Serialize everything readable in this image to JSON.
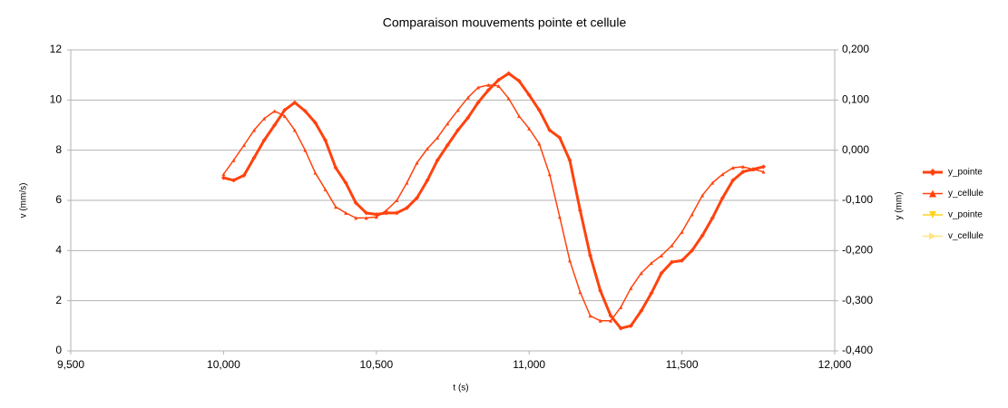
{
  "chart_data": {
    "type": "line",
    "title": "Comparaison mouvements pointe et cellule",
    "x_label": "t (s)",
    "y_label": "v (mm/s)",
    "y2_label": "y (mm)",
    "x": [
      10,
      10.033,
      10.067,
      10.1,
      10.133,
      10.167,
      10.2,
      10.233,
      10.267,
      10.3,
      10.333,
      10.367,
      10.4,
      10.433,
      10.467,
      10.5,
      10.533,
      10.567,
      10.6,
      10.633,
      10.667,
      10.7,
      10.733,
      10.767,
      10.8,
      10.833,
      10.867,
      10.9,
      10.933,
      10.967,
      11,
      11.033,
      11.067,
      11.1,
      11.133,
      11.167,
      11.2,
      11.233,
      11.267,
      11.3,
      11.333,
      11.367,
      11.4,
      11.433,
      11.467,
      11.5,
      11.533,
      11.567,
      11.6,
      11.633,
      11.667,
      11.7,
      11.733,
      11.767
    ],
    "series": [
      {
        "name": "y_pointe",
        "color": "#ff420e",
        "marker": "diamond",
        "width": 3,
        "axis": "y2",
        "values": [
          -0.055,
          -0.06,
          -0.05,
          -0.015,
          0.02,
          0.05,
          0.08,
          0.095,
          0.078,
          0.055,
          0.02,
          -0.035,
          -0.065,
          -0.105,
          -0.125,
          -0.128,
          -0.125,
          -0.125,
          -0.115,
          -0.095,
          -0.06,
          -0.02,
          0.01,
          0.04,
          0.065,
          0.095,
          0.12,
          0.14,
          0.153,
          0.138,
          0.11,
          0.08,
          0.04,
          0.025,
          -0.02,
          -0.12,
          -0.21,
          -0.28,
          -0.33,
          -0.355,
          -0.35,
          -0.32,
          -0.285,
          -0.245,
          -0.223,
          -0.22,
          -0.2,
          -0.17,
          -0.135,
          -0.095,
          -0.06,
          -0.043,
          -0.038,
          -0.033
        ]
      },
      {
        "name": "y_cellule",
        "color": "#ff420e",
        "marker": "triangle",
        "width": 1.5,
        "axis": "y2",
        "values": [
          -0.048,
          -0.02,
          0.01,
          0.04,
          0.063,
          0.078,
          0.068,
          0.04,
          0,
          -0.045,
          -0.078,
          -0.113,
          -0.125,
          -0.135,
          -0.135,
          -0.133,
          -0.12,
          -0.1,
          -0.065,
          -0.025,
          0.003,
          0.025,
          0.053,
          0.08,
          0.105,
          0.125,
          0.13,
          0.128,
          0.103,
          0.068,
          0.043,
          0.013,
          -0.048,
          -0.133,
          -0.22,
          -0.283,
          -0.33,
          -0.34,
          -0.34,
          -0.313,
          -0.275,
          -0.245,
          -0.225,
          -0.21,
          -0.19,
          -0.163,
          -0.128,
          -0.09,
          -0.065,
          -0.048,
          -0.035,
          -0.033,
          -0.038,
          -0.043
        ]
      },
      {
        "name": "v_pointe",
        "color": "#ffd320",
        "marker": "triangle-down",
        "width": 1.5,
        "values": [
          null,
          null,
          null,
          null,
          null,
          null,
          null,
          null,
          null,
          null,
          null,
          null,
          null,
          null,
          null,
          null,
          null,
          null,
          null,
          null,
          null,
          null,
          null,
          null,
          null,
          null,
          null,
          null,
          null,
          null,
          null,
          null,
          null,
          null,
          null,
          null,
          null,
          null,
          null,
          null,
          null,
          null,
          null,
          null,
          null,
          null,
          null,
          null,
          null,
          null,
          null,
          null,
          null,
          null
        ]
      },
      {
        "name": "v_cellule",
        "color": "#ffe680",
        "marker": "triangle-right",
        "width": 1.5,
        "values": [
          null,
          null,
          null,
          null,
          null,
          null,
          null,
          null,
          null,
          null,
          null,
          null,
          null,
          null,
          null,
          null,
          null,
          null,
          null,
          null,
          null,
          null,
          null,
          null,
          null,
          null,
          null,
          null,
          null,
          null,
          null,
          null,
          null,
          null,
          null,
          null,
          null,
          null,
          null,
          null,
          null,
          null,
          null,
          null,
          null,
          null,
          null,
          null,
          null,
          null,
          null,
          null,
          null,
          null
        ]
      }
    ],
    "xlim": [
      9.5,
      12
    ],
    "xticks": [
      {
        "value": 9.5,
        "label": "9,500"
      },
      {
        "value": 10,
        "label": "10,000"
      },
      {
        "value": 10.5,
        "label": "10,500"
      },
      {
        "value": 11,
        "label": "11,000"
      },
      {
        "value": 11.5,
        "label": "11,500"
      },
      {
        "value": 12,
        "label": "12,000"
      }
    ],
    "ylim": [
      0,
      12
    ],
    "yticks": [
      0,
      2,
      4,
      6,
      8,
      10,
      12
    ],
    "y2lim": [
      -0.4,
      0.2
    ],
    "y2ticks": [
      {
        "value": -0.4,
        "label": "-0,400"
      },
      {
        "value": -0.3,
        "label": "-0,300"
      },
      {
        "value": -0.2,
        "label": "-0,200"
      },
      {
        "value": -0.1,
        "label": "-0,100"
      },
      {
        "value": 0,
        "label": "0,000"
      },
      {
        "value": 0.1,
        "label": "0,100"
      },
      {
        "value": 0.2,
        "label": "0,200"
      }
    ],
    "grid": true,
    "legend": "right"
  }
}
